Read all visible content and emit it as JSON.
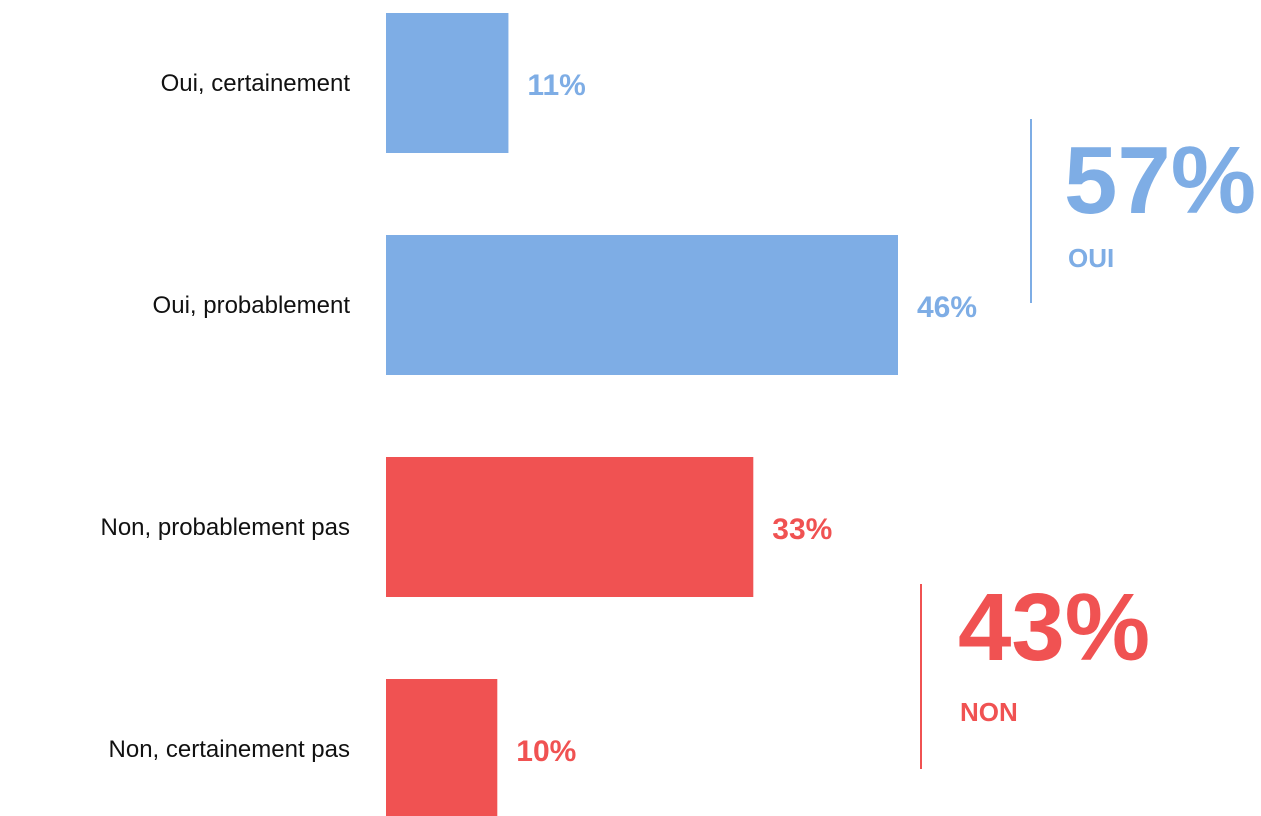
{
  "chart_data": {
    "type": "bar",
    "orientation": "horizontal",
    "categories": [
      "Oui, certainement",
      "Oui, probablement",
      "Non, probablement pas",
      "Non, certainement pas"
    ],
    "values": [
      11,
      46,
      33,
      10
    ],
    "value_labels": [
      "11%",
      "46%",
      "33%",
      "10%"
    ],
    "bar_groups": [
      "oui",
      "oui",
      "non",
      "non"
    ],
    "xlim": [
      0,
      46
    ],
    "grid": false,
    "legend": "none",
    "summaries": [
      {
        "id": "oui",
        "value": 57,
        "value_label": "57%",
        "label": "OUI",
        "color": "#7EADE5"
      },
      {
        "id": "non",
        "value": 43,
        "value_label": "43%",
        "label": "NON",
        "color": "#F05252"
      }
    ]
  },
  "colors": {
    "oui": "#7EADE5",
    "non": "#F05252",
    "label_text": "#111111"
  }
}
